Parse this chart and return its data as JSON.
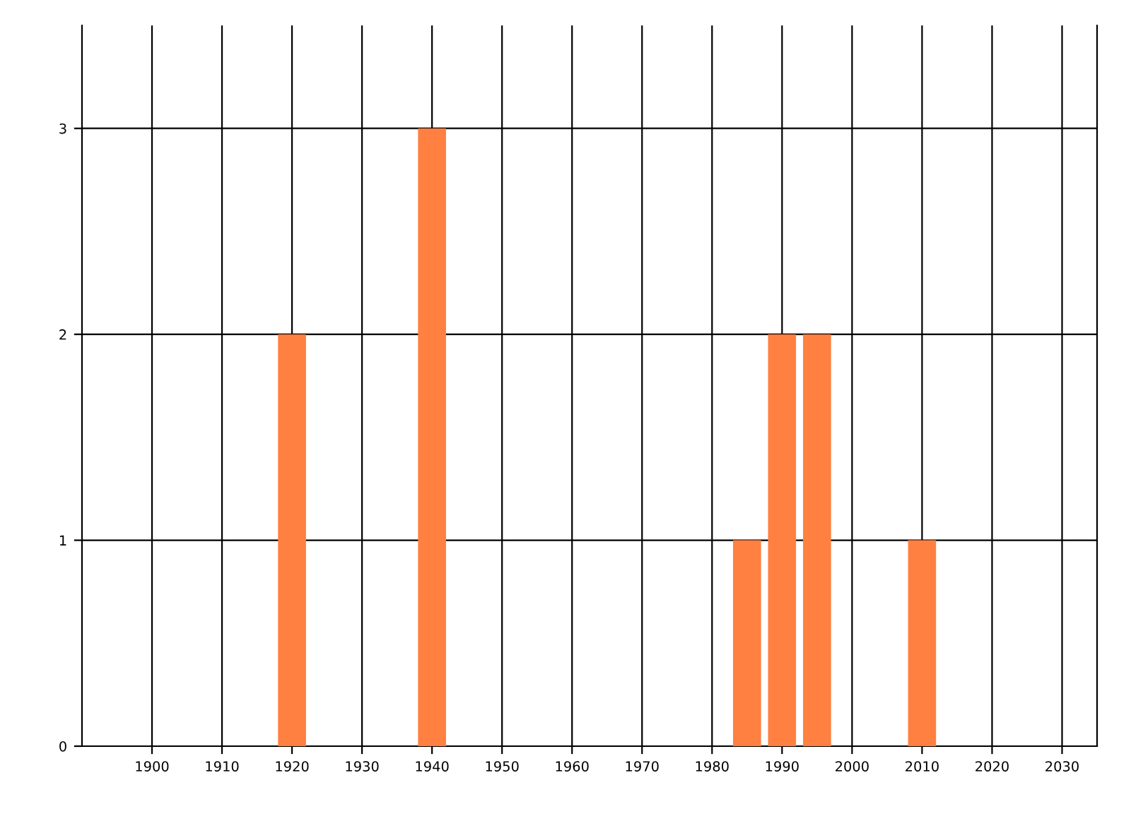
{
  "chart_data": {
    "type": "bar",
    "x": [
      1920,
      1940,
      1985,
      1990,
      1995,
      2010
    ],
    "series": [
      {
        "color": "#ff8040",
        "values": [
          2,
          3,
          1,
          2,
          2,
          1
        ]
      }
    ],
    "xlim": [
      1890,
      2035
    ],
    "xticks": [
      1900,
      1910,
      1920,
      1930,
      1940,
      1950,
      1960,
      1970,
      1980,
      1990,
      2000,
      2010,
      2020,
      2030
    ],
    "ylim": [
      0,
      3.5
    ],
    "yticks": [
      0,
      1,
      2,
      3
    ],
    "grid": true,
    "legend": false
  }
}
